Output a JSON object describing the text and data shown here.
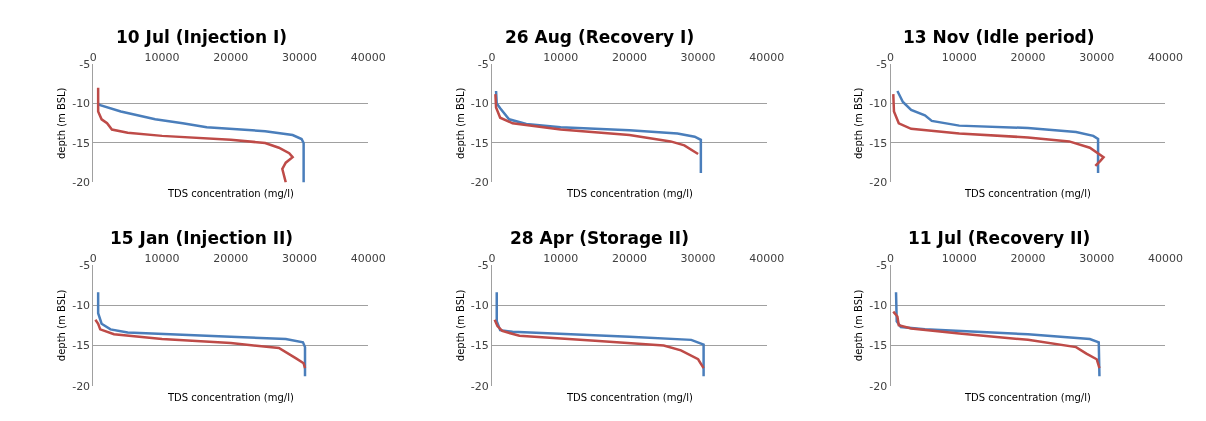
{
  "chart_data": [
    {
      "type": "line",
      "title": "10 Jul (Injection I)",
      "xlabel": "TDS concentration (mg/l)",
      "ylabel": "depth (m BSL)",
      "xlim": [
        0,
        40000
      ],
      "xticks": [
        0,
        10000,
        20000,
        30000,
        40000
      ],
      "ylim": [
        -20,
        -5
      ],
      "yticks": [
        -5,
        -10,
        -15,
        -20
      ],
      "grid": "y",
      "marker": "none",
      "series": [
        {
          "color": "#4a7ebb",
          "x": [
            700,
            1000,
            4000,
            9000,
            13000,
            16500,
            25000,
            29000,
            30300,
            30600,
            30600
          ],
          "values": [
            -10,
            -10.2,
            -11,
            -12,
            -12.5,
            -13,
            -13.5,
            -14,
            -14.5,
            -15,
            -20
          ]
        },
        {
          "color": "#be4b48",
          "x": [
            700,
            700,
            1200,
            2000,
            2700,
            5000,
            10000,
            20000,
            25000,
            27000,
            28500,
            29000,
            28000,
            27500,
            28000
          ],
          "values": [
            -8,
            -11,
            -12,
            -12.5,
            -13.3,
            -13.7,
            -14.1,
            -14.6,
            -15,
            -15.6,
            -16.3,
            -16.8,
            -17.5,
            -18.3,
            -20
          ]
        }
      ]
    },
    {
      "type": "line",
      "title": "26 Aug (Recovery I)",
      "xlabel": "TDS concentration (mg/l)",
      "ylabel": "depth (m BSL)",
      "xlim": [
        0,
        40000
      ],
      "xticks": [
        0,
        10000,
        20000,
        30000,
        40000
      ],
      "ylim": [
        -20,
        -5
      ],
      "yticks": [
        -5,
        -10,
        -15,
        -20
      ],
      "grid": "y",
      "marker": "none",
      "series": [
        {
          "color": "#4a7ebb",
          "x": [
            600,
            700,
            1200,
            2500,
            5000,
            10000,
            20000,
            27000,
            29500,
            30400,
            30400
          ],
          "values": [
            -8.4,
            -10,
            -10.6,
            -12,
            -12.6,
            -13,
            -13.4,
            -13.8,
            -14.2,
            -14.6,
            -18.8
          ]
        },
        {
          "color": "#be4b48",
          "x": [
            500,
            600,
            1200,
            3000,
            10000,
            20000,
            26000,
            28000,
            30000
          ],
          "values": [
            -8.8,
            -10.5,
            -11.8,
            -12.5,
            -13.3,
            -14,
            -14.8,
            -15.3,
            -16.4
          ]
        }
      ]
    },
    {
      "type": "line",
      "title": "13 Nov (Idle period)",
      "xlabel": "TDS concentration (mg/l)",
      "ylabel": "depth (m BSL)",
      "xlim": [
        0,
        40000
      ],
      "xticks": [
        0,
        10000,
        20000,
        30000,
        40000
      ],
      "ylim": [
        -20,
        -5
      ],
      "yticks": [
        -5,
        -10,
        -15,
        -20
      ],
      "grid": "y",
      "marker": "none",
      "series": [
        {
          "color": "#4a7ebb",
          "x": [
            1000,
            1800,
            3000,
            5000,
            6000,
            10000,
            20000,
            27000,
            29500,
            30200,
            30200
          ],
          "values": [
            -8.4,
            -9.8,
            -10.8,
            -11.5,
            -12.2,
            -12.8,
            -13.1,
            -13.6,
            -14.1,
            -14.5,
            -18.8
          ]
        },
        {
          "color": "#be4b48",
          "x": [
            400,
            500,
            1200,
            3000,
            10000,
            20000,
            26000,
            29000,
            31000,
            30500,
            29800
          ],
          "values": [
            -8.8,
            -11,
            -12.5,
            -13.2,
            -13.8,
            -14.3,
            -14.8,
            -15.6,
            -16.8,
            -17.3,
            -17.9
          ]
        }
      ]
    },
    {
      "type": "line",
      "title": "15 Jan (Injection II)",
      "xlabel": "TDS concentration (mg/l)",
      "ylabel": "depth (m BSL)",
      "xlim": [
        0,
        40000
      ],
      "xticks": [
        0,
        10000,
        20000,
        30000,
        40000
      ],
      "ylim": [
        -20,
        -5
      ],
      "yticks": [
        -5,
        -10,
        -15,
        -20
      ],
      "grid": "y",
      "marker": "none",
      "series": [
        {
          "color": "#4a7ebb",
          "x": [
            700,
            700,
            1200,
            2500,
            5000,
            20000,
            28000,
            30500,
            30800,
            30800
          ],
          "values": [
            -8.4,
            -11,
            -12.3,
            -13,
            -13.4,
            -13.9,
            -14.2,
            -14.6,
            -15.2,
            -18.8
          ]
        },
        {
          "color": "#be4b48",
          "x": [
            300,
            700,
            1000,
            3000,
            10000,
            20000,
            27000,
            29500,
            30600,
            30800
          ],
          "values": [
            -11.8,
            -12.3,
            -13,
            -13.6,
            -14.2,
            -14.7,
            -15.3,
            -16.6,
            -17.2,
            -17.8
          ]
        }
      ]
    },
    {
      "type": "line",
      "title": "28 Apr (Storage II)",
      "xlabel": "TDS concentration (mg/l)",
      "ylabel": "depth (m BSL)",
      "xlim": [
        0,
        40000
      ],
      "xticks": [
        0,
        10000,
        20000,
        30000,
        40000
      ],
      "ylim": [
        -20,
        -5
      ],
      "yticks": [
        -5,
        -10,
        -15,
        -20
      ],
      "grid": "y",
      "marker": "none",
      "series": [
        {
          "color": "#4a7ebb",
          "x": [
            700,
            700,
            1200,
            3000,
            20000,
            29000,
            30800,
            30800
          ],
          "values": [
            -8.4,
            -12,
            -13.1,
            -13.3,
            -13.9,
            -14.3,
            -14.9,
            -18.8
          ]
        },
        {
          "color": "#be4b48",
          "x": [
            400,
            800,
            1500,
            4000,
            15000,
            25000,
            27500,
            30000,
            30800
          ],
          "values": [
            -11.8,
            -12.6,
            -13.2,
            -13.8,
            -14.4,
            -15,
            -15.6,
            -16.7,
            -17.8
          ]
        }
      ]
    },
    {
      "type": "line",
      "title": "11 Jul (Recovery II)",
      "xlabel": "TDS concentration (mg/l)",
      "ylabel": "depth (m BSL)",
      "xlim": [
        0,
        40000
      ],
      "xticks": [
        0,
        10000,
        20000,
        30000,
        40000
      ],
      "ylim": [
        -20,
        -5
      ],
      "yticks": [
        -5,
        -10,
        -15,
        -20
      ],
      "grid": "y",
      "marker": "none",
      "series": [
        {
          "color": "#4a7ebb",
          "x": [
            800,
            900,
            1500,
            5000,
            20000,
            29000,
            30300,
            30400
          ],
          "values": [
            -8.4,
            -12,
            -12.7,
            -13,
            -13.6,
            -14.2,
            -14.6,
            -18.8
          ]
        },
        {
          "color": "#be4b48",
          "x": [
            400,
            1000,
            1200,
            3000,
            10000,
            20000,
            27000,
            28500,
            30000,
            30400
          ],
          "values": [
            -10.8,
            -11.4,
            -12.5,
            -12.9,
            -13.5,
            -14.3,
            -15.2,
            -16,
            -16.7,
            -17.8
          ]
        }
      ]
    }
  ]
}
